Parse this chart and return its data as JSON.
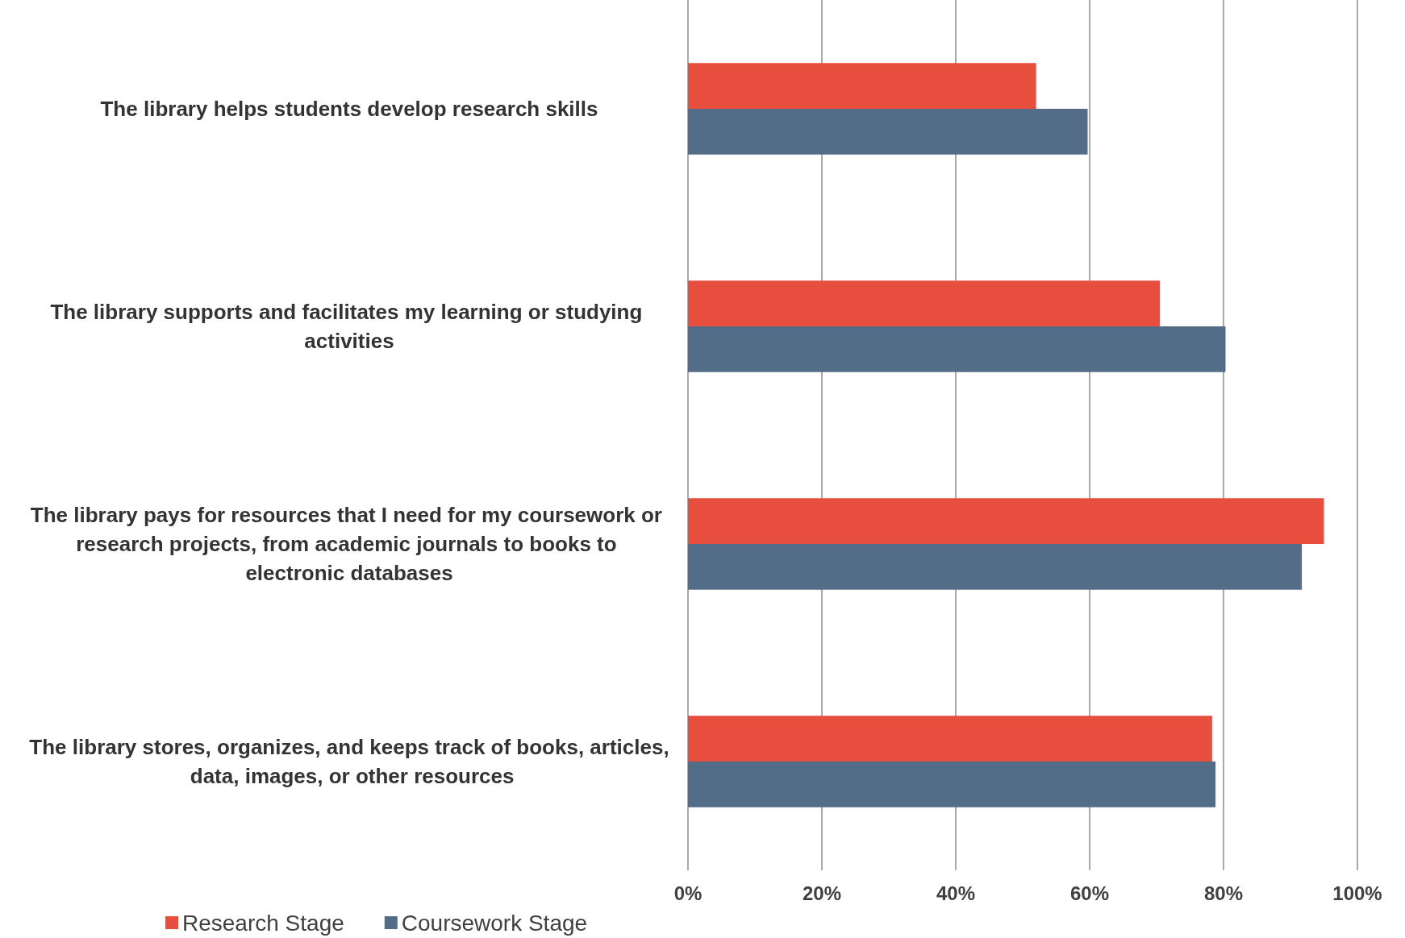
{
  "chart_data": {
    "type": "bar",
    "orientation": "horizontal",
    "categories": [
      "The library helps students develop research skills",
      "The library supports and facilitates my learning or studying activities",
      "The library pays for resources that I need for my coursework or research projects, from academic journals to books to electronic databases",
      "The library stores, organizes, and keeps track of books, articles, data, images, or other resources"
    ],
    "series": [
      {
        "name": "Research Stage",
        "color": "#e84e3d",
        "values": [
          52,
          70.5,
          95,
          78.3
        ]
      },
      {
        "name": "Coursework Stage",
        "color": "#536d88",
        "values": [
          59.7,
          80.3,
          91.7,
          78.8
        ]
      }
    ],
    "xlim": [
      0,
      100
    ],
    "xticks": [
      {
        "value": 0,
        "label": "0%"
      },
      {
        "value": 20,
        "label": "20%"
      },
      {
        "value": 40,
        "label": "40%"
      },
      {
        "value": 60,
        "label": "60%"
      },
      {
        "value": 80,
        "label": "80%"
      },
      {
        "value": 100,
        "label": "100%"
      }
    ],
    "grid": "x",
    "legend": "bottom left"
  }
}
